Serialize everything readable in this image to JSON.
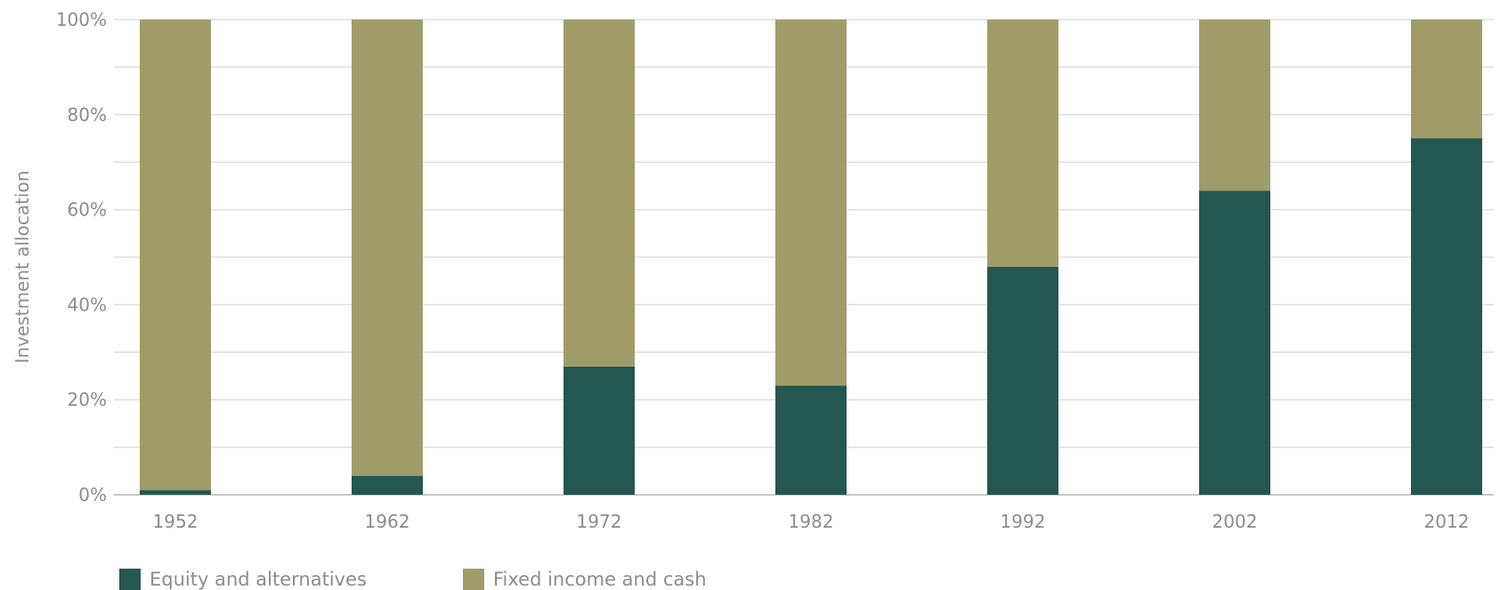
{
  "chart_data": {
    "type": "bar",
    "stacked": true,
    "title": "",
    "xlabel": "",
    "ylabel": "Investment allocation",
    "ylim": [
      0,
      100
    ],
    "yticks": [
      "0%",
      "20%",
      "40%",
      "60%",
      "80%",
      "100%"
    ],
    "grid": true,
    "legend_position": "bottom-left",
    "categories": [
      "1952",
      "1962",
      "1972",
      "1982",
      "1992",
      "2002",
      "2012"
    ],
    "series": [
      {
        "name": "Equity and alternatives",
        "color": "#24574f",
        "values": [
          1,
          4,
          27,
          23,
          48,
          64,
          75
        ]
      },
      {
        "name": "Fixed income and cash",
        "color": "#a09c6a",
        "values": [
          99,
          96,
          73,
          77,
          52,
          36,
          25
        ]
      }
    ]
  }
}
